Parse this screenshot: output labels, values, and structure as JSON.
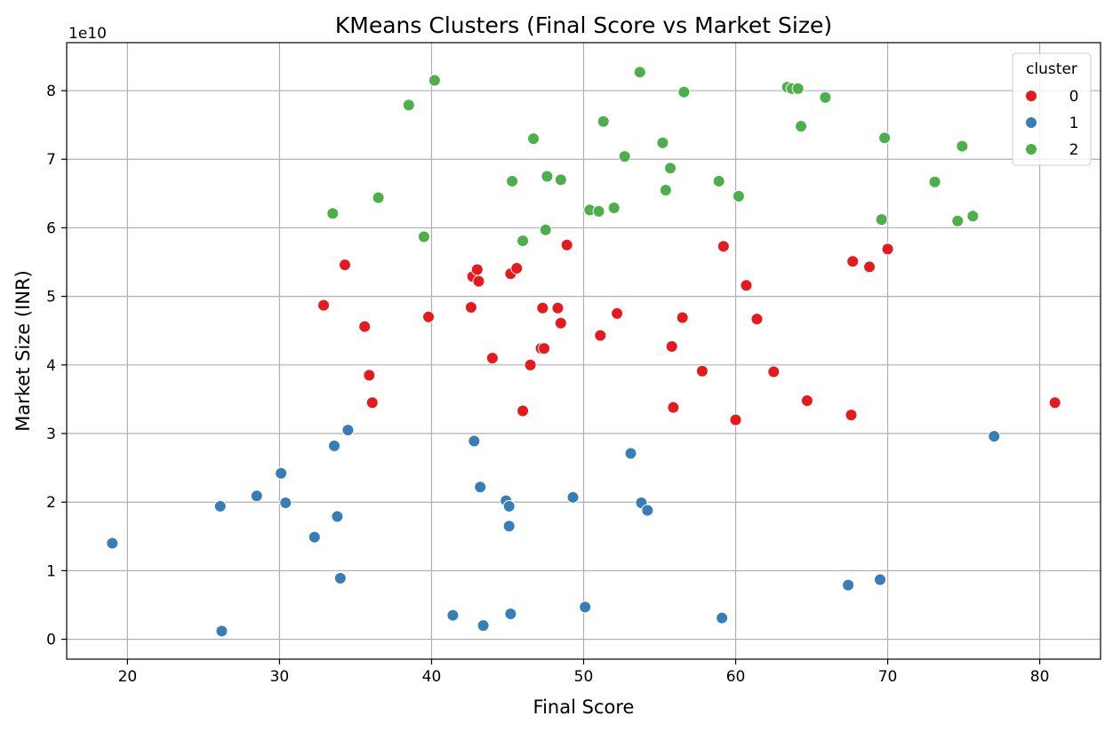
{
  "chart_data": {
    "type": "scatter",
    "title": "KMeans Clusters (Final Score vs Market Size)",
    "xlabel": "Final Score",
    "ylabel": "Market Size (INR)",
    "y_offset_text": "1e10",
    "xlim": [
      16,
      84
    ],
    "ylim": [
      -0.29,
      8.7
    ],
    "x_ticks": [
      "20",
      "30",
      "40",
      "50",
      "60",
      "70",
      "80"
    ],
    "y_ticks": [
      "0",
      "1",
      "2",
      "3",
      "4",
      "5",
      "6",
      "7",
      "8"
    ],
    "grid": true,
    "legend": {
      "title": "cluster",
      "placement": "top-right"
    },
    "series": [
      {
        "name": "0",
        "color": "#e41a1c",
        "points": [
          [
            34.3,
            5.46
          ],
          [
            32.9,
            4.87
          ],
          [
            35.6,
            4.56
          ],
          [
            35.9,
            3.85
          ],
          [
            36.1,
            3.45
          ],
          [
            39.8,
            4.7
          ],
          [
            42.6,
            4.84
          ],
          [
            42.7,
            5.29
          ],
          [
            43.0,
            5.39
          ],
          [
            43.1,
            5.22
          ],
          [
            44.0,
            4.1
          ],
          [
            45.2,
            5.33
          ],
          [
            45.6,
            5.41
          ],
          [
            46.0,
            3.33
          ],
          [
            46.5,
            4.0
          ],
          [
            47.2,
            4.24
          ],
          [
            47.3,
            4.83
          ],
          [
            47.4,
            4.24
          ],
          [
            48.3,
            4.83
          ],
          [
            48.5,
            4.61
          ],
          [
            48.9,
            5.75
          ],
          [
            51.1,
            4.43
          ],
          [
            52.2,
            4.75
          ],
          [
            55.8,
            4.27
          ],
          [
            55.9,
            3.38
          ],
          [
            56.5,
            4.69
          ],
          [
            57.8,
            3.91
          ],
          [
            59.2,
            5.73
          ],
          [
            60.0,
            3.2
          ],
          [
            60.7,
            5.16
          ],
          [
            61.4,
            4.67
          ],
          [
            62.5,
            3.9
          ],
          [
            64.7,
            3.48
          ],
          [
            67.6,
            3.27
          ],
          [
            67.7,
            5.51
          ],
          [
            68.8,
            5.43
          ],
          [
            70.0,
            5.69
          ],
          [
            81.0,
            3.45
          ]
        ]
      },
      {
        "name": "1",
        "color": "#377eb8",
        "points": [
          [
            19.0,
            1.4
          ],
          [
            26.1,
            1.94
          ],
          [
            26.2,
            0.12
          ],
          [
            28.5,
            2.09
          ],
          [
            30.1,
            2.42
          ],
          [
            30.4,
            1.99
          ],
          [
            32.3,
            1.49
          ],
          [
            33.6,
            2.82
          ],
          [
            33.8,
            1.79
          ],
          [
            34.0,
            0.89
          ],
          [
            34.5,
            3.05
          ],
          [
            41.4,
            0.35
          ],
          [
            42.8,
            2.89
          ],
          [
            43.2,
            2.22
          ],
          [
            43.4,
            0.2
          ],
          [
            44.9,
            2.02
          ],
          [
            45.1,
            1.94
          ],
          [
            45.1,
            1.65
          ],
          [
            45.2,
            0.37
          ],
          [
            49.3,
            2.07
          ],
          [
            50.1,
            0.47
          ],
          [
            53.1,
            2.71
          ],
          [
            53.8,
            1.99
          ],
          [
            54.2,
            1.88
          ],
          [
            59.1,
            0.31
          ],
          [
            67.4,
            0.79
          ],
          [
            69.5,
            0.87
          ],
          [
            77.0,
            2.96
          ]
        ]
      },
      {
        "name": "2",
        "color": "#4daf4a",
        "points": [
          [
            33.5,
            6.21
          ],
          [
            36.5,
            6.44
          ],
          [
            38.5,
            7.79
          ],
          [
            39.5,
            5.87
          ],
          [
            40.2,
            8.15
          ],
          [
            45.3,
            6.68
          ],
          [
            46.0,
            5.81
          ],
          [
            46.7,
            7.3
          ],
          [
            47.5,
            5.97
          ],
          [
            47.6,
            6.75
          ],
          [
            48.5,
            6.7
          ],
          [
            50.4,
            6.26
          ],
          [
            51.0,
            6.24
          ],
          [
            51.3,
            7.55
          ],
          [
            52.0,
            6.29
          ],
          [
            52.7,
            7.04
          ],
          [
            53.7,
            8.27
          ],
          [
            55.2,
            7.24
          ],
          [
            55.4,
            6.55
          ],
          [
            55.7,
            6.87
          ],
          [
            56.6,
            7.98
          ],
          [
            58.9,
            6.68
          ],
          [
            60.2,
            6.46
          ],
          [
            63.4,
            8.05
          ],
          [
            63.7,
            8.03
          ],
          [
            64.1,
            8.03
          ],
          [
            64.3,
            7.48
          ],
          [
            65.9,
            7.9
          ],
          [
            69.6,
            6.12
          ],
          [
            69.8,
            7.31
          ],
          [
            73.1,
            6.67
          ],
          [
            74.6,
            6.1
          ],
          [
            74.9,
            7.19
          ],
          [
            75.6,
            6.17
          ]
        ]
      }
    ]
  }
}
